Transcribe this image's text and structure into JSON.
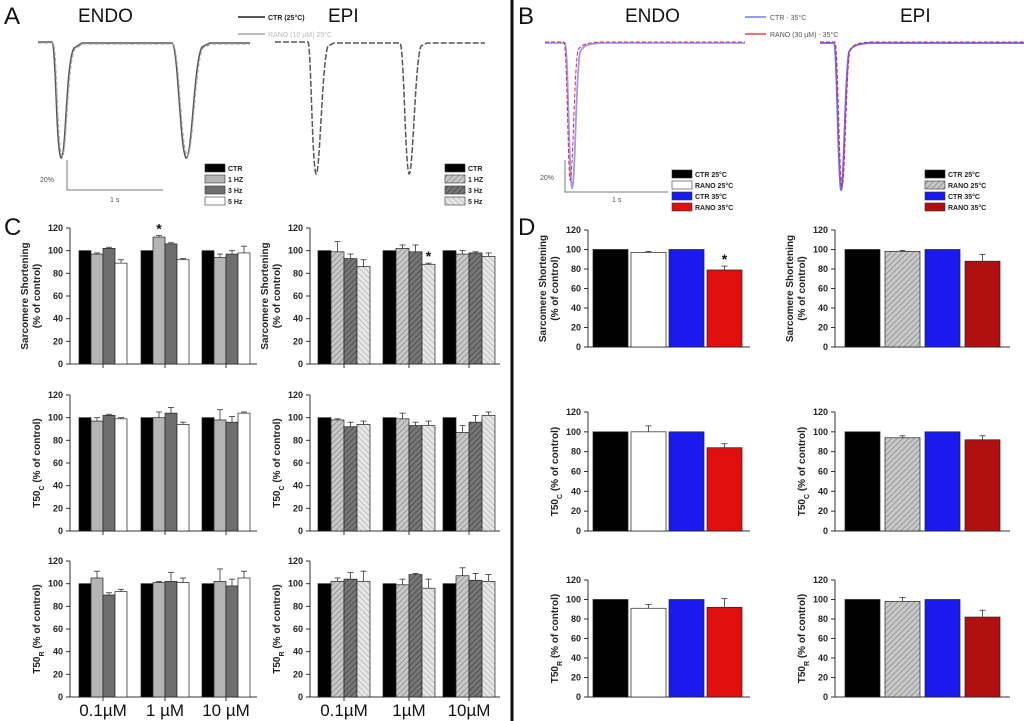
{
  "panels": {
    "A": {
      "label": "A",
      "endo": "ENDO",
      "epi": "EPI",
      "trace_legend": [
        "CTR (25°C)",
        "RANO (10 µM) 25°C"
      ],
      "scale_y": "20%",
      "scale_x": "1 s"
    },
    "B": {
      "label": "B",
      "endo": "ENDO",
      "epi": "EPI",
      "trace_legend": [
        "CTR - 35°C",
        "RANO (30 µM) - 35°C"
      ],
      "scale_y": "20%",
      "scale_x": "1 s"
    },
    "C": {
      "label": "C"
    },
    "D": {
      "label": "D"
    }
  },
  "colors": {
    "blue": "#1a1aee",
    "red": "#e01010",
    "dark_red": "#b01010",
    "ctr_trace": "#555555",
    "rano_trace": "#aaaaaa"
  },
  "legends": {
    "C_endo": [
      {
        "label": "CTR",
        "fill": "black"
      },
      {
        "label": "1 HZ",
        "fill": "lgray"
      },
      {
        "label": "3 Hz",
        "fill": "dgray"
      },
      {
        "label": "5 Hz",
        "fill": "white"
      }
    ],
    "C_epi": [
      {
        "label": "CTR",
        "fill": "black"
      },
      {
        "label": "1 HZ",
        "fill": "hatch1"
      },
      {
        "label": "3 Hz",
        "fill": "hatch2"
      },
      {
        "label": "5 Hz",
        "fill": "hatch3"
      }
    ],
    "D_endo": [
      {
        "label": "CTR 25°C",
        "fill": "black"
      },
      {
        "label": "RANO 25°C",
        "fill": "white"
      },
      {
        "label": "CTR 35°C",
        "fill": "blue"
      },
      {
        "label": "RANO 35°C",
        "fill": "red"
      }
    ],
    "D_epi": [
      {
        "label": "CTR 25°C",
        "fill": "black"
      },
      {
        "label": "RANO 25°C",
        "fill": "hatch1"
      },
      {
        "label": "CTR 35°C",
        "fill": "blue"
      },
      {
        "label": "RANO 35°C",
        "fill": "darkred"
      }
    ]
  },
  "chart_data": [
    {
      "id": "C-endo-ss",
      "panel": "C",
      "region": "ENDO",
      "type": "bar",
      "ylabel": [
        "Sarcomere Shortening",
        "(% of control)"
      ],
      "ylim": [
        0,
        120
      ],
      "yticks": [
        0,
        20,
        40,
        60,
        80,
        100,
        120
      ],
      "categories": [
        "0.1µM",
        "1 µM",
        "10 µM"
      ],
      "show_categories": false,
      "series_names": [
        "CTR",
        "1 HZ",
        "3 Hz",
        "5 Hz"
      ],
      "fills": [
        "black",
        "lgray",
        "dgray",
        "white"
      ],
      "values": [
        [
          100,
          97,
          102,
          89
        ],
        [
          100,
          112,
          106,
          92
        ],
        [
          100,
          94,
          97,
          98
        ]
      ],
      "errors": [
        [
          0,
          1,
          1,
          3
        ],
        [
          0,
          1.5,
          1,
          1
        ],
        [
          0,
          3,
          3,
          6
        ]
      ],
      "stars": [
        [
          1,
          1
        ]
      ]
    },
    {
      "id": "C-epi-ss",
      "panel": "C",
      "region": "EPI",
      "type": "bar",
      "ylabel": [
        "Sarcomere Shortening",
        "(% of control)"
      ],
      "ylim": [
        0,
        120
      ],
      "yticks": [
        0,
        20,
        40,
        60,
        80,
        100,
        120
      ],
      "categories": [
        "0.1µM",
        "1µM",
        "10µM"
      ],
      "show_categories": false,
      "series_names": [
        "CTR",
        "1 HZ",
        "3 Hz",
        "5 Hz"
      ],
      "fills": [
        "black",
        "hatch1",
        "hatch2",
        "hatch3"
      ],
      "values": [
        [
          100,
          99,
          93,
          86
        ],
        [
          100,
          102,
          99,
          88
        ],
        [
          100,
          97,
          98,
          95
        ]
      ],
      "errors": [
        [
          0,
          9,
          4,
          6
        ],
        [
          0,
          3,
          6,
          1
        ],
        [
          0,
          3,
          1,
          3
        ]
      ],
      "stars": [
        [
          1,
          3
        ]
      ]
    },
    {
      "id": "C-endo-t50c",
      "panel": "C",
      "region": "ENDO",
      "type": "bar",
      "ylabel_t50": {
        "main": "T50",
        "sub": "C",
        "rest": " (% of control)"
      },
      "ylim": [
        0,
        120
      ],
      "yticks": [
        0,
        20,
        40,
        60,
        80,
        100,
        120
      ],
      "categories": [
        "0.1µM",
        "1 µM",
        "10 µM"
      ],
      "show_categories": false,
      "series_names": [
        "CTR",
        "1 HZ",
        "3 Hz",
        "5 Hz"
      ],
      "fills": [
        "black",
        "lgray",
        "dgray",
        "white"
      ],
      "values": [
        [
          100,
          97,
          102,
          99
        ],
        [
          100,
          100,
          104,
          94
        ],
        [
          100,
          98,
          96,
          104
        ]
      ],
      "errors": [
        [
          0,
          3,
          1,
          1
        ],
        [
          0,
          5,
          5,
          2
        ],
        [
          0,
          9,
          5,
          1
        ]
      ],
      "stars": []
    },
    {
      "id": "C-epi-t50c",
      "panel": "C",
      "region": "EPI",
      "type": "bar",
      "ylabel_t50": {
        "main": "T50",
        "sub": "C",
        "rest": " (% of control)"
      },
      "ylim": [
        0,
        120
      ],
      "yticks": [
        0,
        20,
        40,
        60,
        80,
        100,
        120
      ],
      "categories": [
        "0.1µM",
        "1µM",
        "10µM"
      ],
      "show_categories": false,
      "series_names": [
        "CTR",
        "1 HZ",
        "3 Hz",
        "5 Hz"
      ],
      "fills": [
        "black",
        "hatch1",
        "hatch2",
        "hatch3"
      ],
      "values": [
        [
          100,
          98,
          92,
          94
        ],
        [
          100,
          99,
          93,
          93
        ],
        [
          100,
          87,
          96,
          102
        ]
      ],
      "errors": [
        [
          0,
          1,
          4,
          3
        ],
        [
          0,
          5,
          3,
          4
        ],
        [
          0,
          6,
          6,
          3
        ]
      ],
      "stars": []
    },
    {
      "id": "C-endo-t50r",
      "panel": "C",
      "region": "ENDO",
      "type": "bar",
      "ylabel_t50": {
        "main": "T50",
        "sub": "R",
        "rest": " (% of control)"
      },
      "ylim": [
        0,
        120
      ],
      "yticks": [
        0,
        20,
        40,
        60,
        80,
        100,
        120
      ],
      "categories": [
        "0.1µM",
        "1 µM",
        "10 µM"
      ],
      "show_categories": true,
      "series_names": [
        "CTR",
        "1 HZ",
        "3 Hz",
        "5 Hz"
      ],
      "fills": [
        "black",
        "lgray",
        "dgray",
        "white"
      ],
      "values": [
        [
          100,
          105,
          90,
          93
        ],
        [
          100,
          101,
          102,
          101
        ],
        [
          100,
          102,
          98,
          105
        ]
      ],
      "errors": [
        [
          0,
          6,
          2,
          2
        ],
        [
          0,
          1,
          8,
          4
        ],
        [
          0,
          11,
          6,
          6
        ]
      ],
      "stars": []
    },
    {
      "id": "C-epi-t50r",
      "panel": "C",
      "region": "EPI",
      "type": "bar",
      "ylabel_t50": {
        "main": "T50",
        "sub": "R",
        "rest": " (% of control)"
      },
      "ylim": [
        0,
        120
      ],
      "yticks": [
        0,
        20,
        40,
        60,
        80,
        100,
        120
      ],
      "categories": [
        "0.1µM",
        "1µM",
        "10µM"
      ],
      "show_categories": true,
      "series_names": [
        "CTR",
        "1 HZ",
        "3 Hz",
        "5 Hz"
      ],
      "fills": [
        "black",
        "hatch1",
        "hatch2",
        "hatch3"
      ],
      "values": [
        [
          100,
          102,
          104,
          102
        ],
        [
          100,
          99,
          108,
          96
        ],
        [
          100,
          107,
          103,
          102
        ]
      ],
      "errors": [
        [
          0,
          3,
          6,
          9
        ],
        [
          0,
          5,
          1,
          8
        ],
        [
          0,
          7,
          6,
          6
        ]
      ],
      "stars": []
    },
    {
      "id": "D-endo-ss",
      "panel": "D",
      "region": "ENDO",
      "type": "bar",
      "ylabel": [
        "Sarcomere Shortening",
        "(% of control)"
      ],
      "ylim": [
        0,
        120
      ],
      "yticks": [
        0,
        20,
        40,
        60,
        80,
        100,
        120
      ],
      "categories": [
        ""
      ],
      "show_categories": false,
      "series_names": [
        "CTR 25°C",
        "RANO 25°C",
        "CTR 35°C",
        "RANO 35°C"
      ],
      "fills": [
        "black",
        "white",
        "blue",
        "red"
      ],
      "values": [
        [
          100,
          97,
          100,
          79
        ]
      ],
      "errors": [
        [
          0,
          1,
          0,
          4
        ]
      ],
      "stars": [
        [
          0,
          3
        ]
      ]
    },
    {
      "id": "D-epi-ss",
      "panel": "D",
      "region": "EPI",
      "type": "bar",
      "ylabel": [
        "Sarcomere Shortening",
        "(% of control)"
      ],
      "ylim": [
        0,
        120
      ],
      "yticks": [
        0,
        20,
        40,
        60,
        80,
        100,
        120
      ],
      "categories": [
        ""
      ],
      "show_categories": false,
      "series_names": [
        "CTR 25°C",
        "RANO 25°C",
        "CTR 35°C",
        "RANO 35°C"
      ],
      "fills": [
        "black",
        "hatch1",
        "blue",
        "darkred"
      ],
      "values": [
        [
          100,
          98,
          100,
          88
        ]
      ],
      "errors": [
        [
          0,
          1,
          0,
          7
        ]
      ],
      "stars": []
    },
    {
      "id": "D-endo-t50c",
      "panel": "D",
      "region": "ENDO",
      "type": "bar",
      "ylabel_t50": {
        "main": "T50",
        "sub": "C",
        "rest": " (% of control)"
      },
      "ylim": [
        0,
        120
      ],
      "yticks": [
        0,
        20,
        40,
        60,
        80,
        100,
        120
      ],
      "categories": [
        ""
      ],
      "show_categories": false,
      "series_names": [
        "CTR 25°C",
        "RANO 25°C",
        "CTR 35°C",
        "RANO 35°C"
      ],
      "fills": [
        "black",
        "white",
        "blue",
        "red"
      ],
      "values": [
        [
          100,
          100,
          100,
          84
        ]
      ],
      "errors": [
        [
          0,
          6,
          0,
          4
        ]
      ],
      "stars": []
    },
    {
      "id": "D-epi-t50c",
      "panel": "D",
      "region": "EPI",
      "type": "bar",
      "ylabel_t50": {
        "main": "T50",
        "sub": "C",
        "rest": " (% of control)"
      },
      "ylim": [
        0,
        120
      ],
      "yticks": [
        0,
        20,
        40,
        60,
        80,
        100,
        120
      ],
      "categories": [
        ""
      ],
      "show_categories": false,
      "series_names": [
        "CTR 25°C",
        "RANO 25°C",
        "CTR 35°C",
        "RANO 35°C"
      ],
      "fills": [
        "black",
        "hatch1",
        "blue",
        "darkred"
      ],
      "values": [
        [
          100,
          94,
          100,
          92
        ]
      ],
      "errors": [
        [
          0,
          2,
          0,
          4
        ]
      ],
      "stars": []
    },
    {
      "id": "D-endo-t50r",
      "panel": "D",
      "region": "ENDO",
      "type": "bar",
      "ylabel_t50": {
        "main": "T50",
        "sub": "R",
        "rest": " (% of control)"
      },
      "ylim": [
        0,
        120
      ],
      "yticks": [
        0,
        20,
        40,
        60,
        80,
        100,
        120
      ],
      "categories": [
        ""
      ],
      "show_categories": false,
      "series_names": [
        "CTR 25°C",
        "RANO 25°C",
        "CTR 35°C",
        "RANO 35°C"
      ],
      "fills": [
        "black",
        "white",
        "blue",
        "red"
      ],
      "values": [
        [
          100,
          91,
          100,
          92
        ]
      ],
      "errors": [
        [
          0,
          4,
          0,
          9
        ]
      ],
      "stars": []
    },
    {
      "id": "D-epi-t50r",
      "panel": "D",
      "region": "EPI",
      "type": "bar",
      "ylabel_t50": {
        "main": "T50",
        "sub": "R",
        "rest": " (% of control)"
      },
      "ylim": [
        0,
        120
      ],
      "yticks": [
        0,
        20,
        40,
        60,
        80,
        100,
        120
      ],
      "categories": [
        ""
      ],
      "show_categories": false,
      "series_names": [
        "CTR 25°C",
        "RANO 25°C",
        "CTR 35°C",
        "RANO 35°C"
      ],
      "fills": [
        "black",
        "hatch1",
        "blue",
        "darkred"
      ],
      "values": [
        [
          100,
          98,
          100,
          82
        ]
      ],
      "errors": [
        [
          0,
          4,
          0,
          7
        ]
      ],
      "stars": []
    }
  ]
}
